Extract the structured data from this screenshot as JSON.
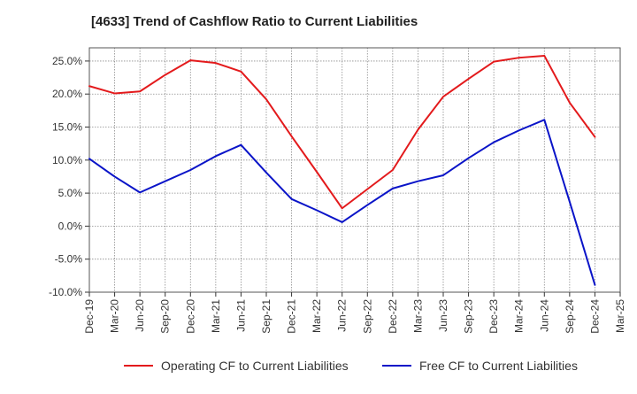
{
  "chart_data": {
    "type": "line",
    "title": "[4633]  Trend of Cashflow Ratio to Current Liabilities",
    "xlabel": "",
    "ylabel": "",
    "ylim": [
      -10,
      27
    ],
    "yticks": [
      25,
      20,
      15,
      10,
      5,
      0,
      -5,
      -10
    ],
    "ytick_labels": [
      "25.0%",
      "20.0%",
      "15.0%",
      "10.0%",
      "5.0%",
      "0.0%",
      "-5.0%",
      "-10.0%"
    ],
    "categories": [
      "Dec-19",
      "Mar-20",
      "Jun-20",
      "Sep-20",
      "Dec-20",
      "Mar-21",
      "Jun-21",
      "Sep-21",
      "Dec-21",
      "Mar-22",
      "Jun-22",
      "Sep-22",
      "Dec-22",
      "Mar-23",
      "Jun-23",
      "Sep-23",
      "Dec-23",
      "Mar-24",
      "Jun-24",
      "Sep-24",
      "Dec-24",
      "Mar-25"
    ],
    "grid": true,
    "legend_position": "bottom",
    "series": [
      {
        "name": "Operating CF to Current Liabilities",
        "color": "#e31a1c",
        "values": [
          21.2,
          20.1,
          20.4,
          22.9,
          25.1,
          24.7,
          23.4,
          19.2,
          13.6,
          8.2,
          2.7,
          5.6,
          8.5,
          14.6,
          19.6,
          22.3,
          24.9,
          25.5,
          25.8,
          18.7,
          13.5,
          null
        ]
      },
      {
        "name": "Free CF to Current Liabilities",
        "color": "#0a14c8",
        "values": [
          10.2,
          7.5,
          5.1,
          6.8,
          8.5,
          10.6,
          12.3,
          8.1,
          4.1,
          2.4,
          0.6,
          3.2,
          5.7,
          6.8,
          7.7,
          10.3,
          12.7,
          14.5,
          16.1,
          3.7,
          -8.9,
          null
        ]
      }
    ]
  }
}
